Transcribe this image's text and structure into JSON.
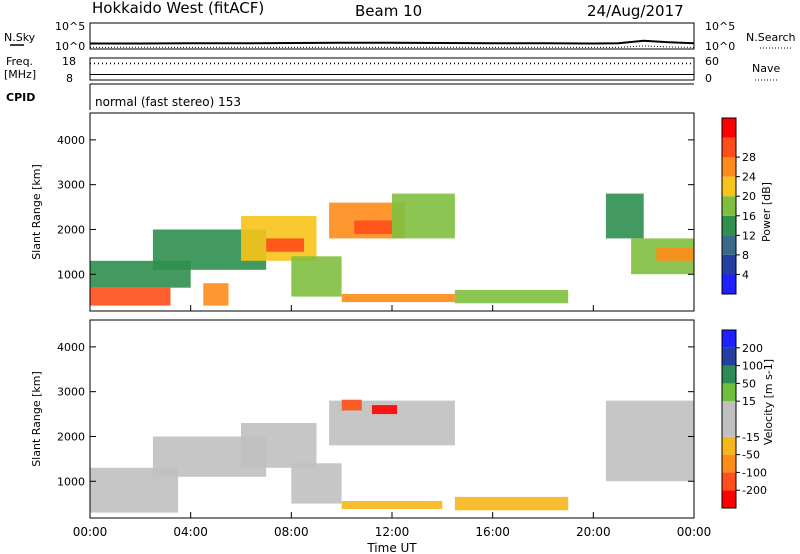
{
  "header": {
    "radar": "Hokkaido West (fitACF)",
    "beam": "Beam 10",
    "date": "24/Aug/2017"
  },
  "time_axis": {
    "title": "Time UT",
    "ticks": [
      "00:00",
      "04:00",
      "08:00",
      "12:00",
      "16:00",
      "20:00",
      "00:00"
    ]
  },
  "noise_panel": {
    "left_label": "N.Sky",
    "right_label": "N.Search",
    "ticks": [
      "10^5",
      "10^0"
    ]
  },
  "freq_panel": {
    "left_label_line1": "Freq.",
    "left_label_line2": "[MHz]",
    "right_label": "Nave",
    "left_ticks": [
      "18",
      "8"
    ],
    "right_ticks": [
      "60",
      "0"
    ]
  },
  "cpid_panel": {
    "label": "CPID",
    "text": "normal (fast stereo) 153"
  },
  "colors": {
    "power_scale": [
      "#1f1fff",
      "#233f9f",
      "#3a6a8a",
      "#2f8f4f",
      "#7fbf3f",
      "#f7c41a",
      "#ff8c1a",
      "#ff4d1a",
      "#ff0000"
    ],
    "velocity_scale": [
      "#ff0000",
      "#ff4f1a",
      "#ff8c1a",
      "#f7b71a",
      "#c0c0c0",
      "#c0c0c0",
      "#6fbf3f",
      "#2e8b57",
      "#233f9f",
      "#1f1fff"
    ]
  },
  "chart_data": [
    {
      "type": "line",
      "title": "N.Sky / N.Search",
      "x": [
        0,
        2,
        4,
        6,
        8,
        10,
        12,
        14,
        16,
        18,
        20,
        21,
        22,
        23,
        24
      ],
      "series": [
        {
          "name": "N.Sky",
          "values": [
            1.05,
            1.05,
            1.1,
            1.1,
            1.15,
            1.2,
            1.2,
            1.15,
            1.1,
            1.1,
            1.05,
            1.1,
            1.6,
            1.3,
            1.1
          ]
        },
        {
          "name": "N.Search",
          "values": [
            0.3,
            0.35,
            0.3,
            0.35,
            0.3,
            0.35,
            0.3,
            0.35,
            0.3,
            0.35,
            0.3,
            0.3,
            0.6,
            0.4,
            0.3
          ]
        }
      ],
      "xlim": [
        0,
        24
      ]
    },
    {
      "type": "line",
      "title": "Freq. / Nave",
      "x": [
        0,
        4,
        8,
        12,
        16,
        20,
        24
      ],
      "series": [
        {
          "name": "Freq. [MHz]",
          "values": [
            10.5,
            10.5,
            10.5,
            10.5,
            10.5,
            10.5,
            10.5
          ]
        },
        {
          "name": "Nave",
          "values": [
            45,
            45,
            45,
            45,
            45,
            45,
            45
          ]
        }
      ],
      "xlim": [
        0,
        24
      ]
    },
    {
      "type": "heatmap",
      "title": "Power",
      "xlabel": "Time UT",
      "ylabel": "Slant Range [km]",
      "xlim": [
        0,
        24
      ],
      "ylim": [
        180,
        4600
      ],
      "yticks": [
        1000,
        2000,
        3000,
        4000
      ],
      "colorbar": {
        "label": "Power [dB]",
        "ticks": [
          4,
          8,
          12,
          16,
          20,
          24,
          28
        ],
        "range": [
          0,
          30
        ]
      },
      "regions": [
        {
          "t0": 0.0,
          "t1": 3.2,
          "r0": 300,
          "r1": 700,
          "value": 26
        },
        {
          "t0": 0.0,
          "t1": 4.0,
          "r0": 700,
          "r1": 1300,
          "value": 10
        },
        {
          "t0": 2.5,
          "t1": 7.0,
          "r0": 1100,
          "r1": 2000,
          "value": 12
        },
        {
          "t0": 4.5,
          "t1": 5.5,
          "r0": 300,
          "r1": 800,
          "value": 20
        },
        {
          "t0": 6.0,
          "t1": 9.0,
          "r0": 1300,
          "r1": 2300,
          "value": 18
        },
        {
          "t0": 7.0,
          "t1": 8.5,
          "r0": 1500,
          "r1": 1800,
          "value": 24
        },
        {
          "t0": 8.0,
          "t1": 10.0,
          "r0": 500,
          "r1": 1400,
          "value": 14
        },
        {
          "t0": 9.5,
          "t1": 12.5,
          "r0": 1800,
          "r1": 2600,
          "value": 20
        },
        {
          "t0": 10.5,
          "t1": 12.0,
          "r0": 1900,
          "r1": 2200,
          "value": 26
        },
        {
          "t0": 12.0,
          "t1": 14.5,
          "r0": 1800,
          "r1": 2800,
          "value": 16
        },
        {
          "t0": 10.0,
          "t1": 14.5,
          "r0": 380,
          "r1": 560,
          "value": 22
        },
        {
          "t0": 14.5,
          "t1": 19.0,
          "r0": 350,
          "r1": 650,
          "value": 14
        },
        {
          "t0": 20.5,
          "t1": 22.0,
          "r0": 1800,
          "r1": 2800,
          "value": 10
        },
        {
          "t0": 21.5,
          "t1": 24.0,
          "r0": 1000,
          "r1": 1800,
          "value": 16
        },
        {
          "t0": 22.5,
          "t1": 24.0,
          "r0": 1300,
          "r1": 1600,
          "value": 22
        }
      ]
    },
    {
      "type": "heatmap",
      "title": "Velocity",
      "xlabel": "Time UT",
      "ylabel": "Slant Range [km]",
      "xlim": [
        0,
        24
      ],
      "ylim": [
        180,
        4600
      ],
      "yticks": [
        1000,
        2000,
        3000,
        4000
      ],
      "colorbar": {
        "label": "Velocity [m s-1]",
        "ticks": [
          -200,
          -100,
          -50,
          -15,
          15,
          50,
          100,
          200
        ],
        "range": [
          -250,
          250
        ]
      },
      "regions": [
        {
          "t0": 0.0,
          "t1": 3.5,
          "r0": 300,
          "r1": 1300,
          "value": 0
        },
        {
          "t0": 2.5,
          "t1": 7.0,
          "r0": 1100,
          "r1": 2000,
          "value": 0
        },
        {
          "t0": 6.0,
          "t1": 9.0,
          "r0": 1300,
          "r1": 2300,
          "value": 0
        },
        {
          "t0": 8.0,
          "t1": 10.0,
          "r0": 500,
          "r1": 1400,
          "value": 0
        },
        {
          "t0": 9.5,
          "t1": 14.5,
          "r0": 1800,
          "r1": 2800,
          "value": 0
        },
        {
          "t0": 10.0,
          "t1": 10.8,
          "r0": 2580,
          "r1": 2820,
          "value": -120
        },
        {
          "t0": 11.2,
          "t1": 12.2,
          "r0": 2500,
          "r1": 2700,
          "value": -220
        },
        {
          "t0": 10.0,
          "t1": 14.0,
          "r0": 380,
          "r1": 560,
          "value": -40
        },
        {
          "t0": 14.5,
          "t1": 19.0,
          "r0": 350,
          "r1": 650,
          "value": -35
        },
        {
          "t0": 20.5,
          "t1": 24.0,
          "r0": 1000,
          "r1": 2800,
          "value": 0
        }
      ]
    }
  ]
}
